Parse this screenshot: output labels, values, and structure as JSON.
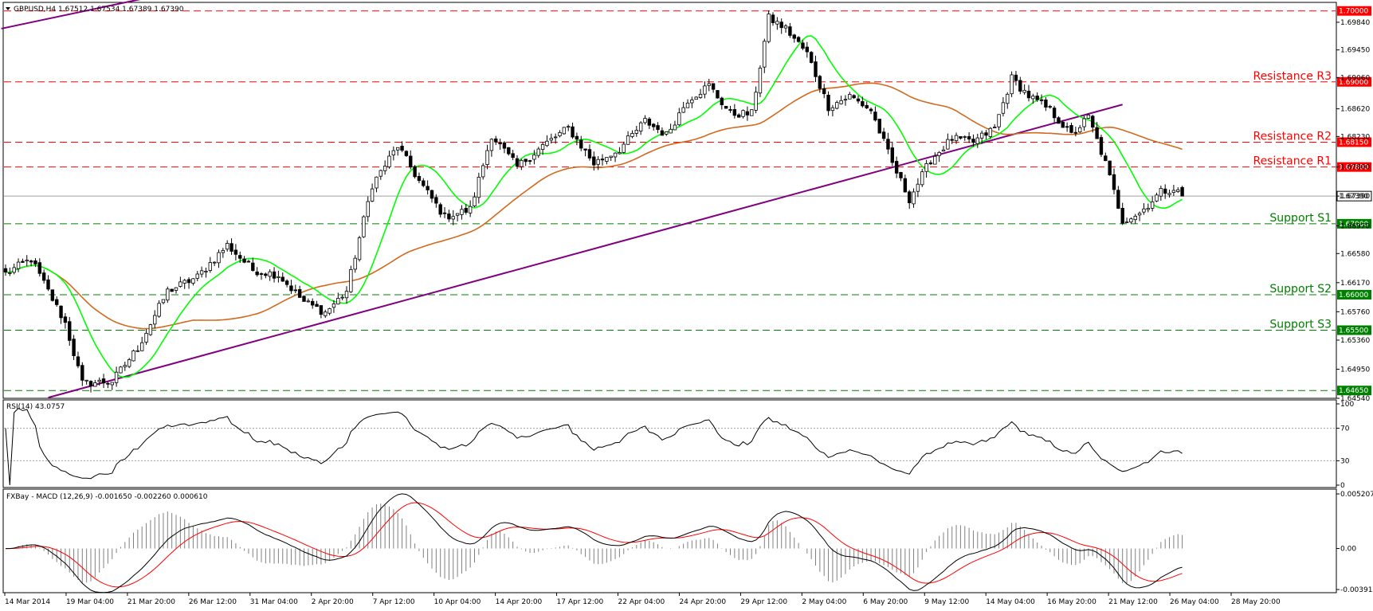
{
  "chart_data": [
    {
      "type": "candlestick",
      "title": "GBPUSD,H4  1.67512 1.67534 1.67389 1.67390",
      "symbol": "GBPUSD",
      "timeframe": "H4",
      "ohlc": {
        "open": 1.67512,
        "high": 1.67534,
        "low": 1.67389,
        "close": 1.6739
      },
      "ylim": [
        1.6454,
        1.7012
      ],
      "y_ticks": [
        "1.69840",
        "1.69450",
        "1.69060",
        "1.68620",
        "1.68230",
        "1.67800",
        "1.67390",
        "1.66970",
        "1.66580",
        "1.66170",
        "1.65760",
        "1.65360",
        "1.64950",
        "1.64540"
      ],
      "x_ticks": [
        "14 Mar 2014",
        "19 Mar 04:00",
        "21 Mar 20:00",
        "26 Mar 12:00",
        "31 Mar 04:00",
        "2 Apr 20:00",
        "7 Apr 12:00",
        "10 Apr 04:00",
        "14 Apr 20:00",
        "17 Apr 12:00",
        "22 Apr 04:00",
        "24 Apr 20:00",
        "29 Apr 12:00",
        "2 May 04:00",
        "6 May 20:00",
        "9 May 12:00",
        "14 May 04:00",
        "16 May 20:00",
        "21 May 12:00",
        "26 May 04:00",
        "28 May 20:00"
      ],
      "current_price": "1.67390",
      "levels": [
        {
          "name": "Resistance R3",
          "value": 1.69,
          "label": "1.69000",
          "color": "#ff0000"
        },
        {
          "name": "Resistance R2",
          "value": 1.6815,
          "label": "1.68150",
          "color": "#ff0000"
        },
        {
          "name": "Resistance R1",
          "value": 1.678,
          "label": "1.67800",
          "color": "#ff0000"
        },
        {
          "name": "",
          "value": 1.7,
          "label": "1.70000",
          "color": "#ff0000"
        },
        {
          "name": "Support S1",
          "value": 1.67,
          "label": "1.67000",
          "color": "#008000"
        },
        {
          "name": "Support S2",
          "value": 1.66,
          "label": "1.66000",
          "color": "#008000"
        },
        {
          "name": "Support S3",
          "value": 1.655,
          "label": "1.65500",
          "color": "#008000"
        },
        {
          "name": "",
          "value": 1.6465,
          "label": "1.64650",
          "color": "#008000"
        }
      ],
      "anchors": [
        [
          0,
          1.663
        ],
        [
          6,
          1.665
        ],
        [
          14,
          1.656
        ],
        [
          18,
          1.6475
        ],
        [
          25,
          1.6478
        ],
        [
          31,
          1.6525
        ],
        [
          38,
          1.6605
        ],
        [
          45,
          1.6625
        ],
        [
          52,
          1.667
        ],
        [
          58,
          1.6635
        ],
        [
          64,
          1.6628
        ],
        [
          70,
          1.659
        ],
        [
          75,
          1.6575
        ],
        [
          80,
          1.6605
        ],
        [
          86,
          1.6755
        ],
        [
          92,
          1.681
        ],
        [
          97,
          1.676
        ],
        [
          103,
          1.671
        ],
        [
          109,
          1.672
        ],
        [
          114,
          1.6825
        ],
        [
          120,
          1.678
        ],
        [
          126,
          1.681
        ],
        [
          132,
          1.6835
        ],
        [
          138,
          1.6785
        ],
        [
          144,
          1.6805
        ],
        [
          150,
          1.6845
        ],
        [
          155,
          1.6825
        ],
        [
          160,
          1.6875
        ],
        [
          165,
          1.6895
        ],
        [
          170,
          1.6855
        ],
        [
          175,
          1.6855
        ],
        [
          179,
          1.699
        ],
        [
          183,
          1.6975
        ],
        [
          188,
          1.694
        ],
        [
          193,
          1.6865
        ],
        [
          198,
          1.688
        ],
        [
          203,
          1.686
        ],
        [
          208,
          1.6785
        ],
        [
          212,
          1.6735
        ],
        [
          217,
          1.679
        ],
        [
          222,
          1.682
        ],
        [
          227,
          1.6815
        ],
        [
          232,
          1.6835
        ],
        [
          236,
          1.6905
        ],
        [
          240,
          1.688
        ],
        [
          245,
          1.686
        ],
        [
          250,
          1.6825
        ],
        [
          254,
          1.685
        ],
        [
          258,
          1.6785
        ],
        [
          262,
          1.6705
        ],
        [
          266,
          1.6715
        ],
        [
          271,
          1.6745
        ],
        [
          274,
          1.675
        ],
        [
          276,
          1.6739
        ]
      ],
      "series": [
        {
          "type": "candlestick",
          "name": "GBPUSD",
          "up_color": "#ffffff",
          "down_color": "#000000"
        },
        {
          "type": "line",
          "name": "",
          "color": "#00ff00",
          "period": 50
        },
        {
          "type": "line",
          "name": "",
          "color": "#d2691e",
          "period": 200
        },
        {
          "type": "trendline",
          "color": "#800080"
        }
      ]
    },
    {
      "type": "line",
      "title": "RSI(14) 43.0757",
      "ylim": [
        0,
        100
      ],
      "y_ticks": [
        "100",
        "70",
        "30",
        "0"
      ],
      "levels": [
        70,
        30
      ],
      "series": [
        {
          "name": "",
          "color": "#000000"
        }
      ]
    },
    {
      "type": "line",
      "title": "FXBay - MACD (12,26,9) -0.001650 -0.002260 0.000610",
      "values": {
        "macd": -0.00165,
        "signal": -0.00226,
        "histogram": 0.00061
      },
      "ylim": [
        -0.00391,
        0.00521
      ],
      "y_ticks": [
        "0.005207",
        "0.00",
        "-0.003913"
      ],
      "series": [
        {
          "name": "",
          "color": "#000000"
        },
        {
          "name": "",
          "color": "#ff0000"
        },
        {
          "name": "",
          "color": "#808080",
          "type": "bar"
        }
      ]
    }
  ]
}
